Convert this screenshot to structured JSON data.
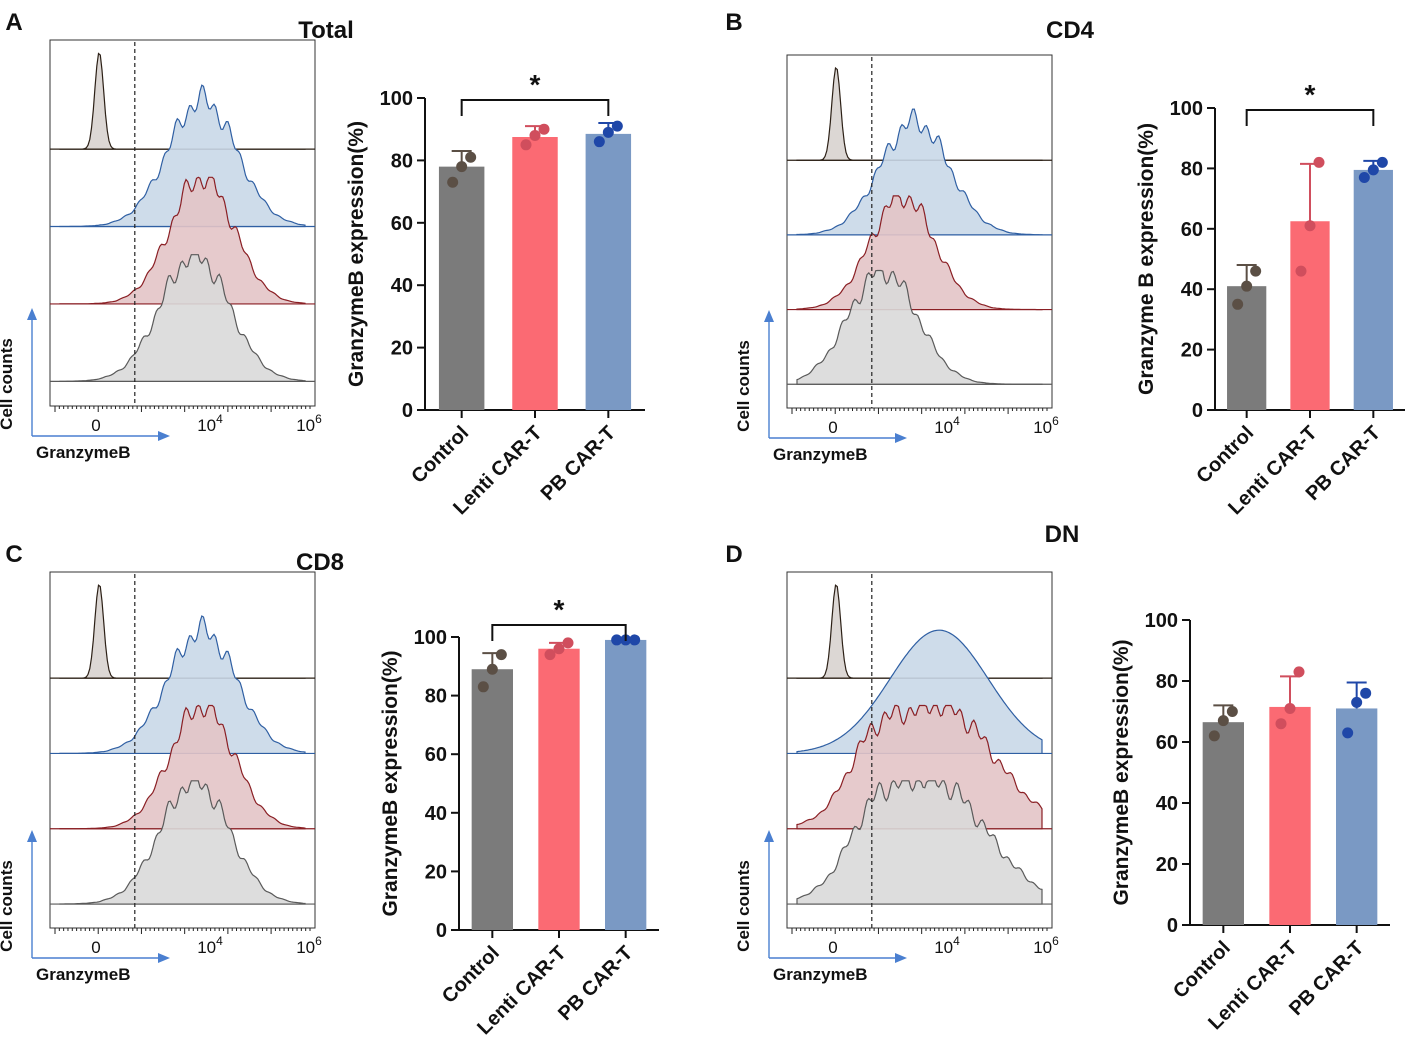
{
  "colors": {
    "control_bar": "#7b7b7b",
    "lenti_bar": "#fb6a73",
    "pb_bar": "#7a99c4",
    "control_dot": "#5b4f45",
    "lenti_dot": "#d04e5d",
    "pb_dot": "#1f47a8",
    "hist_control_fill": "#d8d3cf",
    "hist_control_line": "#2c2016",
    "hist_pb_fill": "#c9d8e8",
    "hist_pb_line": "#2f5fa3",
    "hist_lenti_fill": "#e3c4c6",
    "hist_lenti_line": "#8a1f24",
    "hist_gray_fill": "#d9d9d9",
    "hist_gray_line": "#5a5a5a",
    "axis_arrow": "#4a7fd0"
  },
  "histogram_labels": {
    "x_axis": "GranzymeB",
    "y_axis": "Cell counts",
    "tick_zero": "0",
    "tick_10": "10",
    "tick_10_exp": "4",
    "tick_10b": "10",
    "tick_10b_exp": "6"
  },
  "chart_data": [
    {
      "panel": "A",
      "title": "Total",
      "type": "bar",
      "categories": [
        "Control",
        "Lenti CAR-T",
        "PB CAR-T"
      ],
      "values": [
        78,
        87.5,
        88.5
      ],
      "error": [
        5,
        3.5,
        3.5
      ],
      "points": [
        [
          73,
          78,
          81
        ],
        [
          85,
          88,
          90
        ],
        [
          86,
          89,
          91
        ]
      ],
      "ylabel": "GranzymeB expression(%)",
      "ylim": [
        0,
        100
      ],
      "yticks": [
        "0",
        "20",
        "40",
        "60",
        "80",
        "100"
      ],
      "significance": {
        "from": 0,
        "to": 2,
        "label": "*"
      },
      "histogram_peaks": {
        "control": 0.55,
        "pb": 0.72,
        "lenti": 0.72,
        "gray": 0.72
      }
    },
    {
      "panel": "B",
      "title": "CD4",
      "type": "bar",
      "categories": [
        "Control",
        "Lenti CAR-T",
        "PB CAR-T"
      ],
      "values": [
        41,
        62.5,
        79.5
      ],
      "error": [
        7,
        19,
        3
      ],
      "points": [
        [
          35,
          41,
          46
        ],
        [
          46,
          61,
          82
        ],
        [
          77,
          79.5,
          82
        ]
      ],
      "ylabel": "Granzyme B expression(%)",
      "ylim": [
        0,
        100
      ],
      "yticks": [
        "0",
        "20",
        "40",
        "60",
        "80",
        "100"
      ],
      "significance": {
        "from": 0,
        "to": 2,
        "label": "*"
      },
      "histogram_peaks": {
        "control": 0.55,
        "pb": 0.67,
        "lenti": 0.67,
        "gray": 0.67
      }
    },
    {
      "panel": "C",
      "title": "CD8",
      "type": "bar",
      "categories": [
        "Control",
        "Lenti CAR-T",
        "PB CAR-T"
      ],
      "values": [
        89,
        96,
        99
      ],
      "error": [
        5.5,
        2,
        0.5
      ],
      "points": [
        [
          83,
          89,
          94
        ],
        [
          94,
          96,
          98
        ],
        [
          99,
          99,
          99
        ]
      ],
      "ylabel": "GranzymeB expression(%)",
      "ylim": [
        0,
        100
      ],
      "yticks": [
        "0",
        "20",
        "40",
        "60",
        "80",
        "100"
      ],
      "significance": {
        "from": 0,
        "to": 2,
        "label": "*"
      },
      "histogram_peaks": {
        "control": 0.55,
        "pb": 0.72,
        "lenti": 0.72,
        "gray": 0.72
      }
    },
    {
      "panel": "D",
      "title": "DN",
      "type": "bar",
      "categories": [
        "Control",
        "Lenti CAR-T",
        "PB CAR-T"
      ],
      "values": [
        66.5,
        71.5,
        71
      ],
      "error": [
        5.5,
        10,
        8.5
      ],
      "points": [
        [
          62,
          67,
          70
        ],
        [
          66,
          71,
          83
        ],
        [
          63,
          73,
          76
        ]
      ],
      "ylabel": "GranzymeB expression(%)",
      "ylim": [
        0,
        100
      ],
      "yticks": [
        "0",
        "20",
        "40",
        "60",
        "80",
        "100"
      ],
      "significance": null,
      "histogram_peaks": {
        "control": 0.55,
        "pb": 0.72,
        "lenti": 0.72,
        "gray": 0.72
      }
    }
  ]
}
